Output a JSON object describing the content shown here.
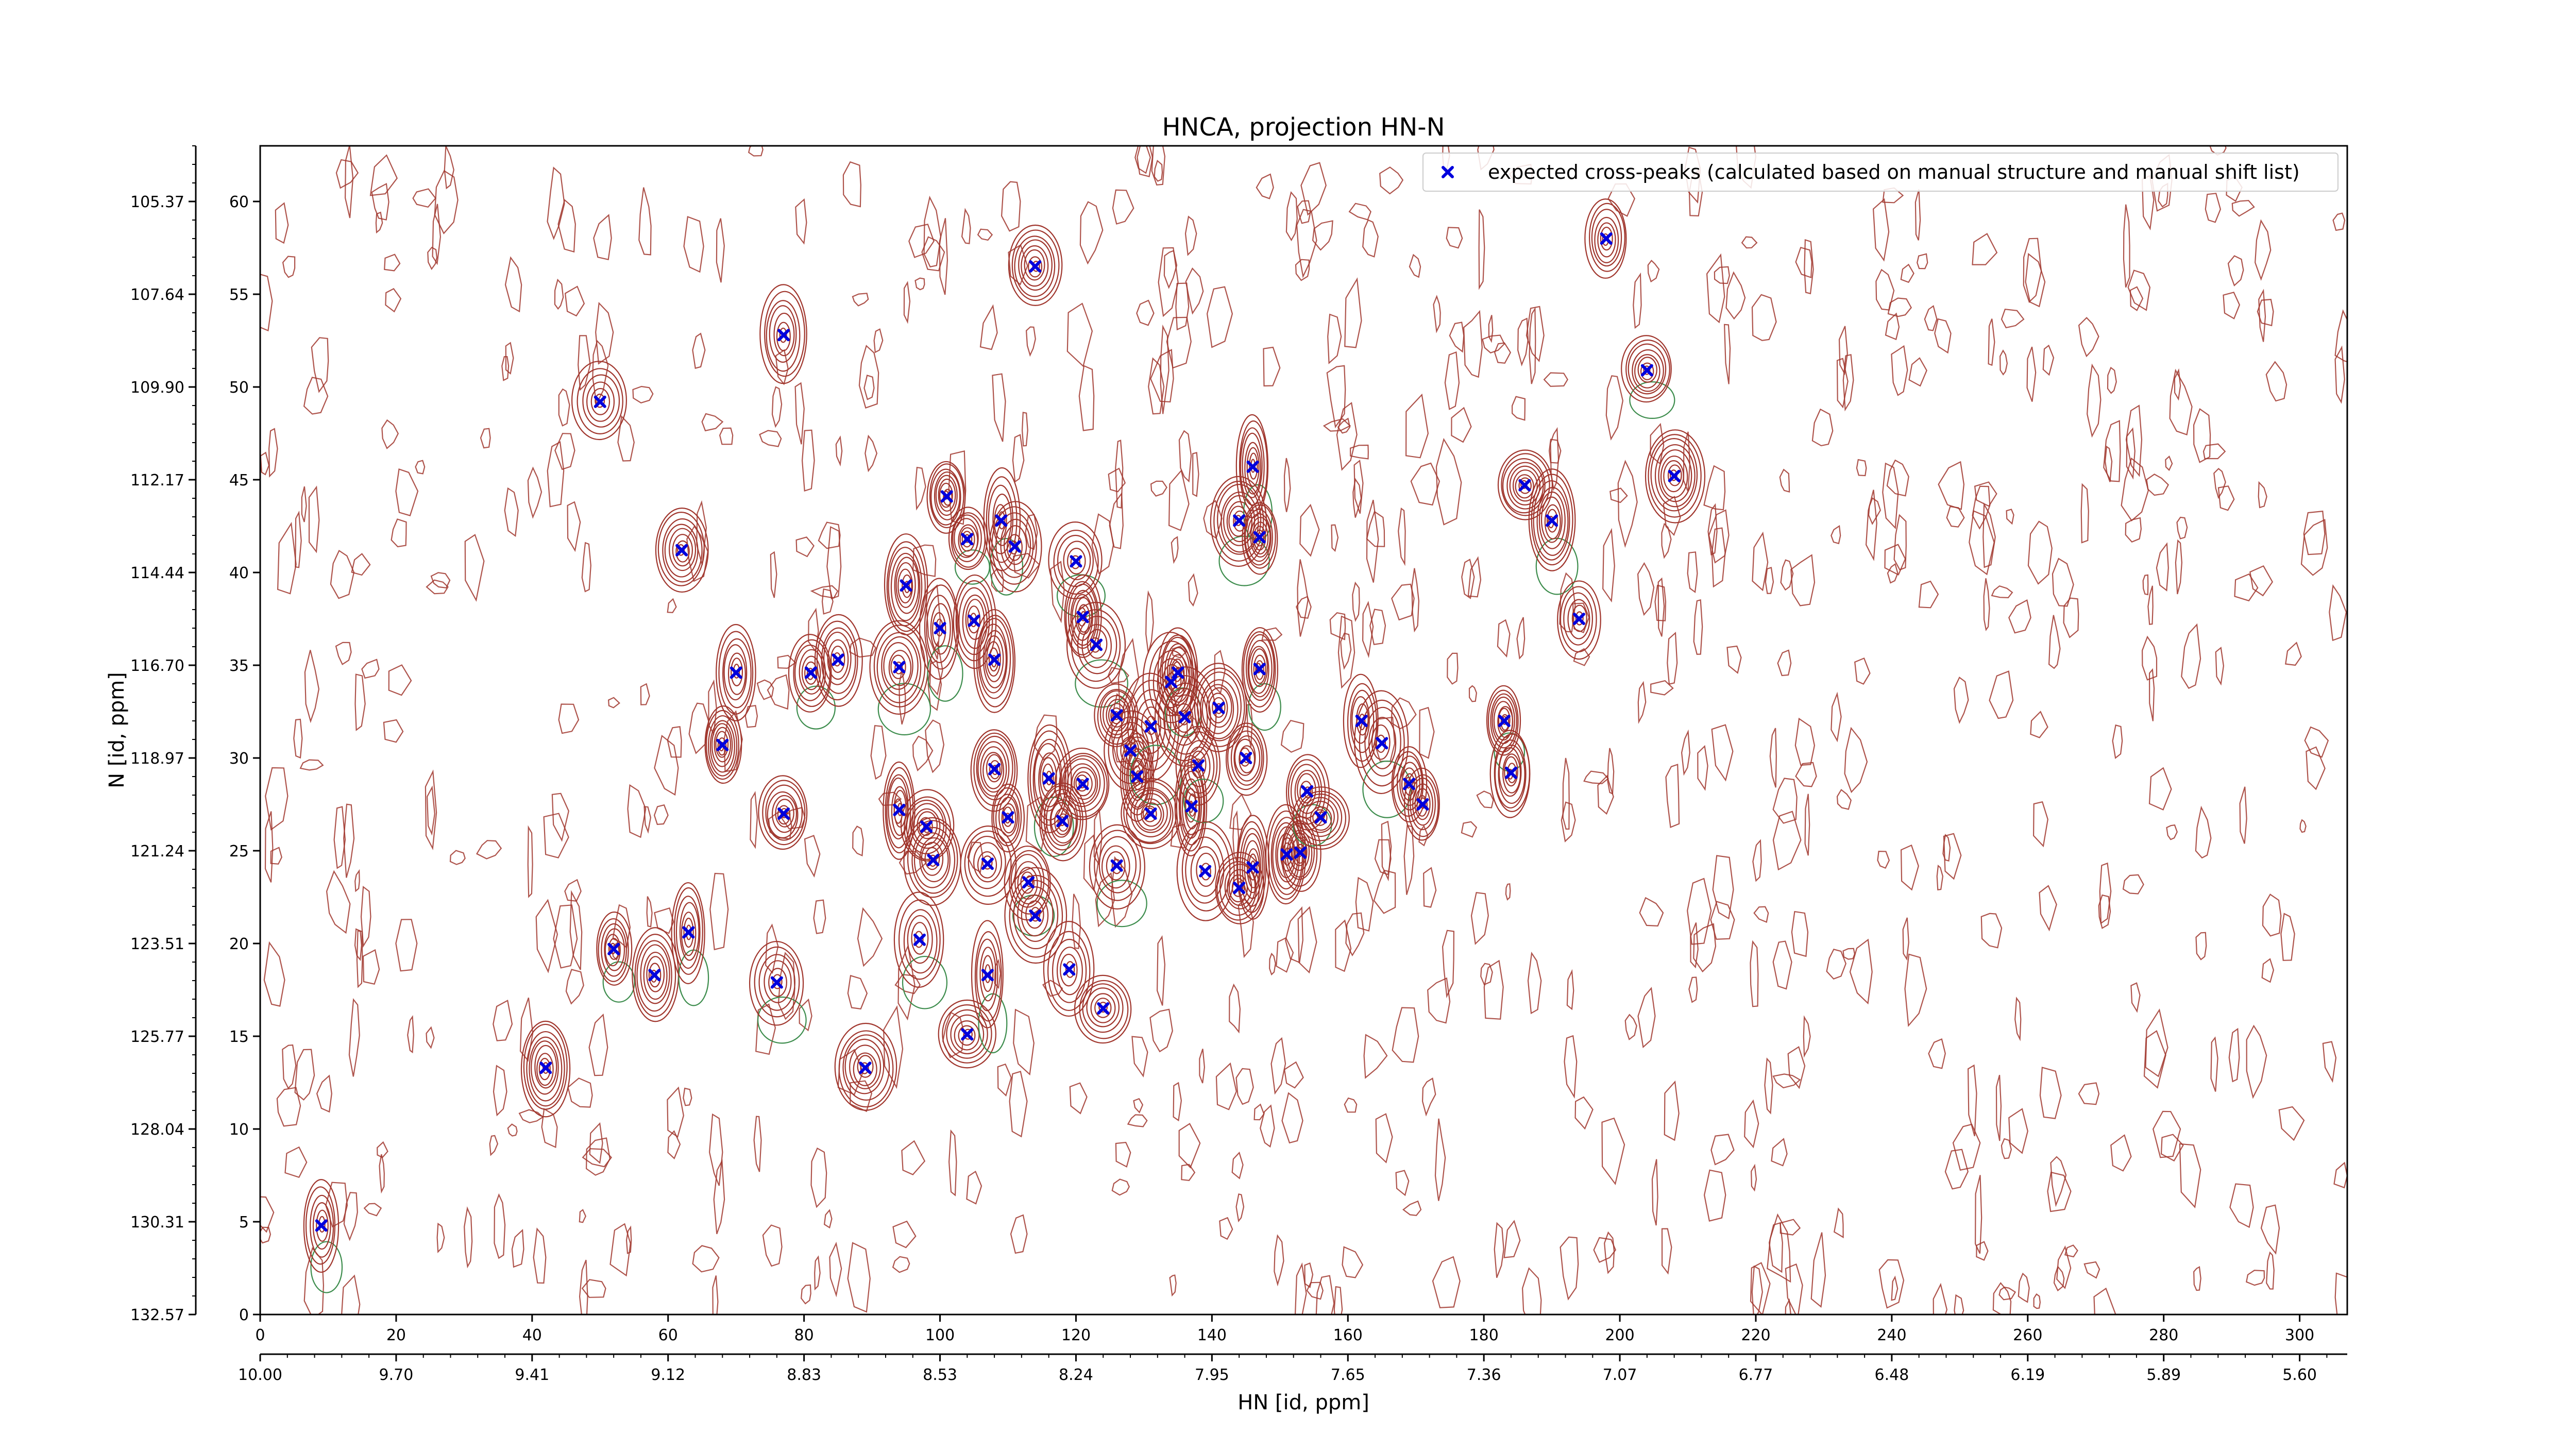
{
  "colors": {
    "positive_contour": "#a0352c",
    "negative_contour": "#3c8c4c",
    "peak_marker": "#0000dd",
    "axes": "#000000"
  },
  "chart_data": {
    "type": "scatter",
    "title": "HNCA, projection HN-N",
    "xlabel": "HN [id, ppm]",
    "ylabel": "N [id, ppm]",
    "xlim": [
      0,
      307
    ],
    "ylim": [
      0,
      63
    ],
    "x_ticks": [
      0,
      20,
      40,
      60,
      80,
      100,
      120,
      140,
      160,
      180,
      200,
      220,
      240,
      260,
      280,
      300
    ],
    "y_ticks": [
      0,
      5,
      10,
      15,
      20,
      25,
      30,
      35,
      40,
      45,
      50,
      55,
      60
    ],
    "secondary_x_ticks": [
      "10.00",
      "9.70",
      "9.41",
      "9.12",
      "8.83",
      "8.53",
      "8.24",
      "7.95",
      "7.65",
      "7.36",
      "7.07",
      "6.77",
      "6.48",
      "6.19",
      "5.89",
      "5.60"
    ],
    "secondary_y_ticks": [
      "132.57",
      "130.31",
      "128.04",
      "125.77",
      "123.51",
      "121.24",
      "118.97",
      "116.70",
      "114.44",
      "112.17",
      "109.90",
      "107.64",
      "105.37"
    ],
    "legend": {
      "position": "top-right",
      "entries": [
        "expected cross-peaks (calculated based on manual structure and manual shift list)"
      ]
    },
    "series": [
      {
        "name": "expected cross-peaks (calculated based on manual structure and manual shift list)",
        "marker": "x",
        "points": [
          [
            9,
            4.8
          ],
          [
            42,
            13.3
          ],
          [
            50,
            49.2
          ],
          [
            52,
            19.7
          ],
          [
            58,
            18.3
          ],
          [
            62,
            41.2
          ],
          [
            63,
            20.6
          ],
          [
            68,
            30.7
          ],
          [
            70,
            34.6
          ],
          [
            76,
            17.9
          ],
          [
            77,
            27.0
          ],
          [
            77,
            52.8
          ],
          [
            81,
            34.6
          ],
          [
            85,
            35.3
          ],
          [
            89,
            13.3
          ],
          [
            94,
            34.9
          ],
          [
            94,
            27.2
          ],
          [
            95,
            39.3
          ],
          [
            97,
            20.2
          ],
          [
            98,
            26.3
          ],
          [
            99,
            24.5
          ],
          [
            100,
            37.0
          ],
          [
            101,
            44.1
          ],
          [
            104,
            15.1
          ],
          [
            104,
            41.8
          ],
          [
            105,
            37.4
          ],
          [
            107,
            24.3
          ],
          [
            107,
            18.3
          ],
          [
            108,
            35.3
          ],
          [
            108,
            29.4
          ],
          [
            109,
            42.8
          ],
          [
            110,
            26.8
          ],
          [
            111,
            41.4
          ],
          [
            113,
            23.3
          ],
          [
            114,
            21.5
          ],
          [
            114,
            56.5
          ],
          [
            116,
            28.9
          ],
          [
            118,
            26.6
          ],
          [
            119,
            18.6
          ],
          [
            120,
            40.6
          ],
          [
            121,
            28.6
          ],
          [
            121,
            37.6
          ],
          [
            123,
            36.1
          ],
          [
            124,
            16.5
          ],
          [
            126,
            32.3
          ],
          [
            126,
            24.2
          ],
          [
            128,
            30.4
          ],
          [
            129,
            29.0
          ],
          [
            131,
            31.7
          ],
          [
            131,
            27.0
          ],
          [
            134,
            34.1
          ],
          [
            135,
            34.6
          ],
          [
            136,
            32.2
          ],
          [
            137,
            27.4
          ],
          [
            138,
            29.6
          ],
          [
            139,
            23.9
          ],
          [
            141,
            32.7
          ],
          [
            144,
            42.8
          ],
          [
            144,
            23.0
          ],
          [
            145,
            30.0
          ],
          [
            146,
            45.7
          ],
          [
            146,
            24.1
          ],
          [
            147,
            41.9
          ],
          [
            147,
            34.8
          ],
          [
            151,
            24.8
          ],
          [
            153,
            24.9
          ],
          [
            154,
            28.2
          ],
          [
            156,
            26.8
          ],
          [
            162,
            32.0
          ],
          [
            165,
            30.8
          ],
          [
            169,
            28.6
          ],
          [
            171,
            27.5
          ],
          [
            183,
            32.0
          ],
          [
            184,
            29.2
          ],
          [
            186,
            44.7
          ],
          [
            190,
            42.8
          ],
          [
            194,
            37.5
          ],
          [
            198,
            58.0
          ],
          [
            204,
            50.9
          ],
          [
            208,
            45.2
          ]
        ]
      }
    ],
    "contours": {
      "levels_positive": "many",
      "levels_negative": "few",
      "noise": "scattered"
    }
  }
}
